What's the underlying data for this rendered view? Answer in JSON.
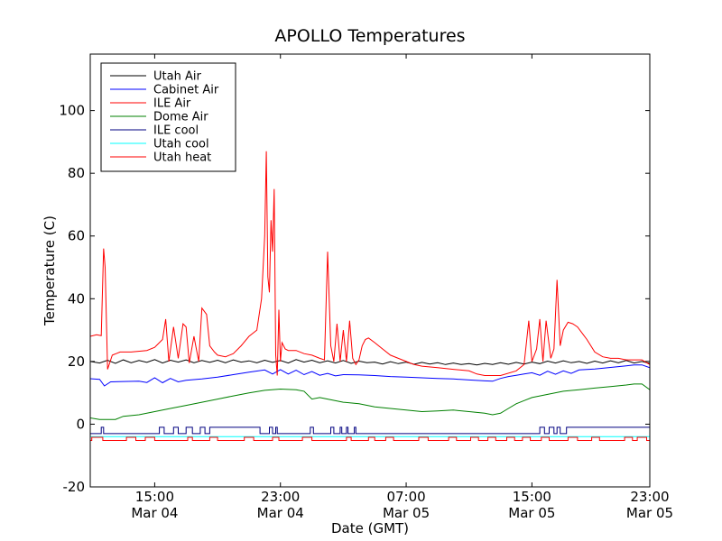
{
  "chart_data": {
    "type": "line",
    "title": "APOLLO Temperatures",
    "xlabel": "Date (GMT)",
    "ylabel": "Temperature (C)",
    "xlim": [
      10.9,
      46.5
    ],
    "ylim": [
      -20,
      118
    ],
    "grid": false,
    "legend_position": "top-left",
    "x_unit": "hours since Mar 04 00:00 GMT",
    "x_ticks": [
      {
        "value": 15,
        "line1": "15:00",
        "line2": "Mar 04"
      },
      {
        "value": 23,
        "line1": "23:00",
        "line2": "Mar 04"
      },
      {
        "value": 31,
        "line1": "07:00",
        "line2": "Mar 05"
      },
      {
        "value": 39,
        "line1": "15:00",
        "line2": "Mar 05"
      },
      {
        "value": 47,
        "line1": "23:00",
        "line2": "Mar 05"
      }
    ],
    "y_ticks": [
      {
        "value": -20,
        "label": "-20"
      },
      {
        "value": 0,
        "label": "0"
      },
      {
        "value": 20,
        "label": "20"
      },
      {
        "value": 40,
        "label": "40"
      },
      {
        "value": 60,
        "label": "60"
      },
      {
        "value": 80,
        "label": "80"
      },
      {
        "value": 100,
        "label": "100"
      }
    ],
    "series": [
      {
        "name": "Utah Air",
        "color": "#000000",
        "x": [
          10.9,
          11.5,
          12.0,
          12.5,
          13.0,
          13.5,
          14.0,
          14.5,
          15.0,
          15.5,
          16.0,
          16.5,
          17.0,
          17.5,
          18.0,
          18.5,
          19.0,
          19.5,
          20.0,
          20.5,
          21.0,
          21.5,
          22.0,
          22.5,
          23.0,
          23.5,
          24.0,
          24.5,
          25.0,
          25.5,
          26.0,
          26.5,
          27.0,
          27.5,
          28.0,
          28.5,
          29.0,
          29.5,
          30.0,
          30.5,
          31.0,
          31.5,
          32.0,
          32.5,
          33.0,
          33.5,
          34.0,
          34.5,
          35.0,
          35.5,
          36.0,
          36.5,
          37.0,
          37.5,
          38.0,
          38.5,
          39.0,
          39.5,
          40.0,
          40.5,
          41.0,
          41.5,
          42.0,
          42.5,
          43.0,
          43.5,
          44.0,
          44.5,
          45.0,
          45.5,
          46.0,
          46.5
        ],
        "y": [
          20,
          19.5,
          20.4,
          19.4,
          20.5,
          19.6,
          20.3,
          19.7,
          20.6,
          19.5,
          20.4,
          19.8,
          20.5,
          19.6,
          20.3,
          19.7,
          20.4,
          19.6,
          20.5,
          19.8,
          20.2,
          19.6,
          20.4,
          19.7,
          20.3,
          19.5,
          20.6,
          19.8,
          20.4,
          19.6,
          20.2,
          19.5,
          20.3,
          19.4,
          20.1,
          19.6,
          19.8,
          19.2,
          19.9,
          19.3,
          19.8,
          19.1,
          19.7,
          19.2,
          19.6,
          19.0,
          19.5,
          19.0,
          19.3,
          18.9,
          19.4,
          19.0,
          19.6,
          19.1,
          19.7,
          19.2,
          19.8,
          19.3,
          20.1,
          19.5,
          20.2,
          19.6,
          20.0,
          19.4,
          20.1,
          19.5,
          20.2,
          19.6,
          20.3,
          19.5,
          20.0,
          19.4
        ]
      },
      {
        "name": "Cabinet Air",
        "color": "#0000ff",
        "x": [
          10.9,
          11.5,
          11.8,
          12.2,
          13.0,
          14.0,
          14.5,
          15.0,
          15.5,
          16.0,
          16.5,
          17.0,
          18.0,
          19.0,
          20.0,
          21.0,
          22.0,
          22.5,
          23.0,
          23.5,
          24.0,
          24.5,
          25.0,
          25.5,
          26.0,
          26.5,
          27.0,
          28.0,
          29.0,
          30.0,
          31.0,
          32.0,
          33.0,
          34.0,
          35.0,
          36.0,
          36.5,
          37.0,
          37.5,
          38.0,
          38.5,
          39.0,
          39.5,
          40.0,
          40.5,
          41.0,
          41.5,
          42.0,
          43.0,
          44.0,
          45.0,
          45.5,
          46.0,
          46.5
        ],
        "y": [
          14.5,
          14.3,
          12.2,
          13.5,
          13.6,
          13.7,
          13.3,
          14.8,
          13.2,
          14.6,
          13.5,
          14.0,
          14.4,
          15.0,
          15.8,
          16.6,
          17.3,
          16.0,
          17.4,
          16.0,
          17.2,
          15.8,
          16.8,
          15.6,
          16.2,
          15.4,
          15.8,
          15.7,
          15.5,
          15.2,
          15.0,
          14.8,
          14.6,
          14.4,
          14.1,
          13.8,
          13.7,
          14.6,
          15.2,
          15.6,
          16.0,
          16.4,
          15.6,
          16.9,
          15.9,
          17.0,
          16.2,
          17.3,
          17.6,
          18.1,
          18.6,
          18.9,
          18.9,
          18.0
        ]
      },
      {
        "name": "ILE Air",
        "color": "#ff0000",
        "x": [
          10.9,
          11.3,
          11.6,
          11.75,
          11.85,
          12.0,
          12.3,
          12.8,
          13.5,
          14.5,
          15.0,
          15.5,
          15.7,
          15.9,
          16.2,
          16.5,
          16.8,
          17.0,
          17.2,
          17.5,
          17.8,
          18.0,
          18.3,
          18.5,
          18.8,
          19.0,
          19.5,
          20.0,
          20.5,
          21.0,
          21.5,
          21.8,
          22.0,
          22.1,
          22.2,
          22.3,
          22.4,
          22.5,
          22.6,
          22.7,
          22.8,
          22.9,
          23.0,
          23.1,
          23.3,
          23.5,
          24.0,
          24.5,
          25.0,
          25.5,
          25.8,
          26.0,
          26.2,
          26.4,
          26.6,
          26.8,
          27.0,
          27.2,
          27.4,
          27.6,
          27.8,
          28.0,
          28.2,
          28.4,
          28.6,
          29.0,
          29.5,
          30.0,
          30.5,
          31.0,
          31.5,
          32.0,
          33.0,
          34.0,
          35.0,
          35.5,
          36.0,
          37.0,
          38.0,
          38.5,
          38.8,
          39.0,
          39.3,
          39.5,
          39.7,
          39.9,
          40.2,
          40.4,
          40.6,
          40.8,
          41.0,
          41.3,
          41.6,
          41.9,
          42.2,
          42.5,
          43.0,
          43.5,
          44.0,
          44.5,
          45.0,
          45.5,
          46.0,
          46.5
        ],
        "y": [
          28,
          28.5,
          28.2,
          56.0,
          50.0,
          17.5,
          22.0,
          23.0,
          23.0,
          23.5,
          24.5,
          27.0,
          33.5,
          20.0,
          31.0,
          21.0,
          32.0,
          31.0,
          19.5,
          28.0,
          20.0,
          37.0,
          35.0,
          25.0,
          23.0,
          22.0,
          21.5,
          22.5,
          25.0,
          28.0,
          30.0,
          40.0,
          60.0,
          87.0,
          47.0,
          42.0,
          65.0,
          55.0,
          75.0,
          22.0,
          15.5,
          36.5,
          20.0,
          26.0,
          24.0,
          23.5,
          23.5,
          22.5,
          22.0,
          21.0,
          20.5,
          55.0,
          25.0,
          20.0,
          32.0,
          20.0,
          30.0,
          20.0,
          33.0,
          21.0,
          19.0,
          20.5,
          25.0,
          27.0,
          27.5,
          26.0,
          24.0,
          22.0,
          21.0,
          20.0,
          19.0,
          18.5,
          18.0,
          17.5,
          17.0,
          16.0,
          15.5,
          15.5,
          17.0,
          19.0,
          33.0,
          20.0,
          24.0,
          33.5,
          20.0,
          33.0,
          21.0,
          24.0,
          46.0,
          25.0,
          30.0,
          32.5,
          32.0,
          31.0,
          29.0,
          27.0,
          23.0,
          21.5,
          21.0,
          21.0,
          20.5,
          20.5,
          20.5,
          19.0
        ]
      },
      {
        "name": "Dome Air",
        "color": "#008000",
        "x": [
          10.9,
          11.5,
          12.5,
          13.0,
          14.0,
          15.0,
          16.0,
          17.0,
          18.0,
          19.0,
          20.0,
          21.0,
          22.0,
          23.0,
          24.0,
          24.5,
          25.0,
          25.5,
          26.0,
          27.0,
          28.0,
          29.0,
          30.0,
          31.0,
          32.0,
          33.0,
          34.0,
          35.0,
          36.0,
          36.5,
          37.0,
          37.5,
          38.0,
          38.5,
          39.0,
          40.0,
          41.0,
          42.0,
          43.0,
          44.0,
          45.0,
          45.5,
          46.0,
          46.5
        ],
        "y": [
          2.0,
          1.5,
          1.5,
          2.5,
          3.0,
          4.0,
          5.0,
          6.0,
          7.0,
          8.0,
          9.0,
          10.0,
          10.8,
          11.2,
          11.0,
          10.5,
          8.0,
          8.5,
          8.0,
          7.0,
          6.5,
          5.5,
          5.0,
          4.5,
          4.0,
          4.2,
          4.5,
          4.0,
          3.5,
          3.0,
          3.5,
          5.0,
          6.5,
          7.5,
          8.5,
          9.5,
          10.5,
          11.0,
          11.5,
          12.0,
          12.5,
          12.8,
          12.8,
          11.0
        ]
      },
      {
        "name": "ILE cool",
        "color": "#000080",
        "pattern": "pulse",
        "low": -3,
        "high": -1,
        "pulses": [
          [
            11.6,
            11.75
          ],
          [
            15.3,
            15.6
          ],
          [
            16.2,
            16.5
          ],
          [
            17.0,
            17.4
          ],
          [
            17.9,
            18.2
          ],
          [
            18.5,
            21.7
          ],
          [
            22.3,
            22.5
          ],
          [
            22.7,
            22.8
          ],
          [
            24.9,
            25.1
          ],
          [
            26.2,
            26.4
          ],
          [
            26.8,
            26.9
          ],
          [
            27.2,
            27.3
          ],
          [
            27.7,
            27.8
          ],
          [
            39.5,
            39.8
          ],
          [
            40.1,
            40.4
          ],
          [
            40.6,
            40.8
          ],
          [
            41.2,
            46.5
          ]
        ]
      },
      {
        "name": "Utah cool",
        "color": "#00ffff",
        "pattern": "flat",
        "value": -4
      },
      {
        "name": "Utah heat",
        "color": "#ff0000",
        "pattern": "pulse",
        "low": -5.2,
        "high": -4.2,
        "pulses": [
          [
            11.0,
            11.7
          ],
          [
            13.2,
            13.8
          ],
          [
            14.4,
            15.0
          ],
          [
            17.1,
            17.4
          ],
          [
            18.5,
            19.0
          ],
          [
            20.7,
            21.3
          ],
          [
            22.5,
            22.9
          ],
          [
            24.4,
            25.0
          ],
          [
            27.2,
            27.5
          ],
          [
            28.6,
            29.0
          ],
          [
            29.7,
            30.2
          ],
          [
            31.8,
            32.4
          ],
          [
            33.7,
            34.2
          ],
          [
            35.1,
            35.6
          ],
          [
            36.2,
            36.7
          ],
          [
            37.4,
            37.9
          ],
          [
            38.4,
            38.9
          ],
          [
            39.6,
            40.1
          ],
          [
            41.3,
            41.9
          ],
          [
            42.8,
            43.3
          ],
          [
            44.9,
            45.4
          ],
          [
            45.7,
            46.3
          ]
        ]
      }
    ]
  }
}
